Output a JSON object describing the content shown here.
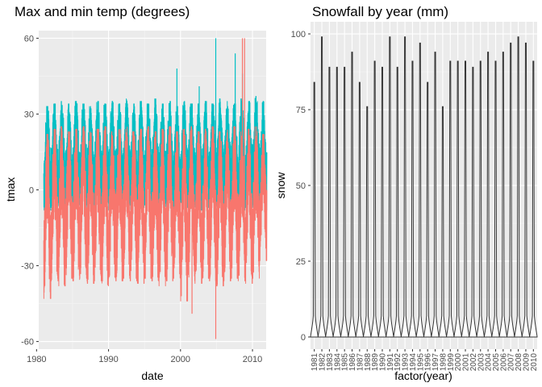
{
  "chart_data": [
    {
      "type": "line",
      "title": "Max and min temp (degrees)",
      "xlabel": "date",
      "ylabel": "tmax",
      "xlim": [
        1980.3,
        2011.9
      ],
      "ylim": [
        -63,
        63
      ],
      "x_ticks": [
        1980,
        1990,
        2000,
        2010
      ],
      "x_tick_labels": [
        "1980",
        "1990",
        "2000",
        "2010"
      ],
      "y_ticks": [
        -60,
        -30,
        0,
        30,
        60
      ],
      "y_tick_labels": [
        "-60",
        "-30",
        "0",
        "30",
        "60"
      ],
      "grid": true,
      "panel_background": "#ebebeb",
      "series": [
        {
          "color": "#00bfc4",
          "x_range": [
            1981,
            2011
          ],
          "annual_max": [
            33,
            34,
            35,
            34,
            35,
            34,
            33,
            35,
            34,
            35,
            34,
            36,
            34,
            35,
            34,
            36,
            34,
            35,
            33,
            35,
            34,
            34,
            35,
            34,
            36,
            35,
            34,
            36,
            35,
            37,
            35
          ],
          "annual_min": [
            -8,
            -7,
            -6,
            -8,
            -7,
            -6,
            -8,
            -7,
            -6,
            -8,
            -7,
            -6,
            -8,
            -7,
            -6,
            -8,
            -7,
            -6,
            -8,
            -7,
            -6,
            -8,
            -7,
            -6,
            -8,
            -7,
            -6,
            -8,
            -7,
            -6,
            -8
          ],
          "outliers": [
            {
              "x": 1999.5,
              "y": 48
            },
            {
              "x": 2002.6,
              "y": 41
            },
            {
              "x": 2004.9,
              "y": 60
            },
            {
              "x": 2007.6,
              "y": 54
            },
            {
              "x": 2008.6,
              "y": 46
            }
          ]
        },
        {
          "color": "#f8766d",
          "x_range": [
            1981,
            2011
          ],
          "annual_max": [
            22,
            24,
            25,
            23,
            24,
            25,
            23,
            24,
            25,
            23,
            24,
            25,
            23,
            24,
            25,
            23,
            24,
            25,
            23,
            24,
            25,
            23,
            24,
            25,
            23,
            24,
            25,
            23,
            24,
            25,
            22
          ],
          "annual_min": [
            -43,
            -36,
            -38,
            -35,
            -36,
            -35,
            -37,
            -36,
            -38,
            -35,
            -36,
            -35,
            -36,
            -37,
            -35,
            -36,
            -38,
            -36,
            -35,
            -44,
            -36,
            -37,
            -35,
            -36,
            -38,
            -36,
            -35,
            -36,
            -37,
            -35,
            -28
          ],
          "outliers": [
            {
              "x": 2001.6,
              "y": -49
            },
            {
              "x": 2004.9,
              "y": -59
            },
            {
              "x": 2008.6,
              "y": 60
            },
            {
              "x": 2008.9,
              "y": 60
            }
          ]
        }
      ]
    },
    {
      "type": "violin",
      "title": "Snowfall by year (mm)",
      "xlabel": "factor(year)",
      "ylabel": "snow",
      "ylim": [
        -4,
        104
      ],
      "y_ticks": [
        0,
        25,
        50,
        75,
        100
      ],
      "y_tick_labels": [
        "0",
        "25",
        "50",
        "75",
        "100"
      ],
      "grid": true,
      "panel_background": "#ebebeb",
      "categories": [
        "1981",
        "1982",
        "1983",
        "1984",
        "1985",
        "1986",
        "1987",
        "1988",
        "1989",
        "1990",
        "1991",
        "1992",
        "1993",
        "1994",
        "1995",
        "1996",
        "1997",
        "1998",
        "1999",
        "2000",
        "2001",
        "2002",
        "2003",
        "2004",
        "2005",
        "2006",
        "2007",
        "2008",
        "2009",
        "2010"
      ],
      "max_values": [
        84,
        99,
        89,
        89,
        89,
        94,
        84,
        76,
        91,
        89,
        99,
        89,
        99,
        91,
        97,
        84,
        94,
        76,
        91,
        91,
        91,
        89,
        91,
        94,
        91,
        94,
        97,
        99,
        97,
        91
      ],
      "min_value": 0,
      "line_color": "#333333"
    }
  ]
}
